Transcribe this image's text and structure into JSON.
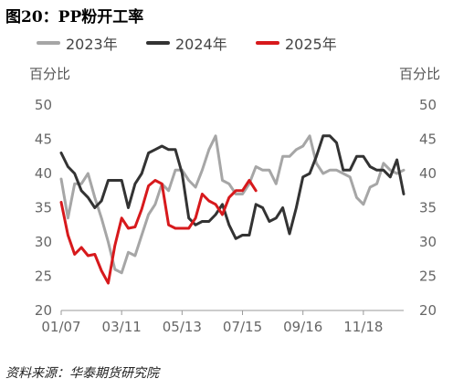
{
  "title": "图20：PP粉开工率",
  "source": "资料来源：华泰期货研究院",
  "chart_data": {
    "type": "line",
    "title": "PP粉开工率",
    "ylabel_left": "百分比",
    "ylabel_right": "百分比",
    "ylim": [
      20,
      50
    ],
    "yticks": [
      20,
      25,
      30,
      35,
      40,
      45,
      50
    ],
    "x_domain_weeks": [
      1,
      52
    ],
    "xtick_labels": [
      "01/07",
      "03/11",
      "05/13",
      "07/15",
      "09/16",
      "11/18"
    ],
    "xtick_weeks": [
      1,
      10,
      19,
      28,
      37,
      46
    ],
    "grid": false,
    "legend_position": "top",
    "series": [
      {
        "name": "2023年",
        "color": "#a6a6a6",
        "x": [
          1,
          2,
          3,
          4,
          5,
          6,
          7,
          8,
          9,
          10,
          11,
          12,
          13,
          14,
          15,
          16,
          17,
          18,
          19,
          20,
          21,
          22,
          23,
          24,
          25,
          26,
          27,
          28,
          29,
          30,
          31,
          32,
          33,
          34,
          35,
          36,
          37,
          38,
          39,
          40,
          41,
          42,
          43,
          44,
          45,
          46,
          47,
          48,
          49,
          50,
          51,
          52
        ],
        "y": [
          39.2,
          33.5,
          38.5,
          38.5,
          40.0,
          36.5,
          33.5,
          30.0,
          26.0,
          25.5,
          28.5,
          28.0,
          31.0,
          34.0,
          35.5,
          38.5,
          37.5,
          40.5,
          40.5,
          39.0,
          38.0,
          40.5,
          43.5,
          45.5,
          39.0,
          38.5,
          37.0,
          37.0,
          38.5,
          41.0,
          40.5,
          40.5,
          38.5,
          42.5,
          42.5,
          43.5,
          44.0,
          45.5,
          41.5,
          40.0,
          40.5,
          40.5,
          40.0,
          39.5,
          36.5,
          35.5,
          38.0,
          38.5,
          41.5,
          40.5,
          40.0,
          40.5
        ]
      },
      {
        "name": "2024年",
        "color": "#333333",
        "x": [
          1,
          2,
          3,
          4,
          5,
          6,
          7,
          8,
          9,
          10,
          11,
          12,
          13,
          14,
          15,
          16,
          17,
          18,
          19,
          20,
          21,
          22,
          23,
          24,
          25,
          26,
          27,
          28,
          29,
          30,
          31,
          32,
          33,
          34,
          35,
          36,
          37,
          38,
          39,
          40,
          41,
          42,
          43,
          44,
          45,
          46,
          47,
          48,
          49,
          50,
          51,
          52
        ],
        "y": [
          43.0,
          41.0,
          40.0,
          37.5,
          36.5,
          35.0,
          36.0,
          39.0,
          39.0,
          39.0,
          35.0,
          38.5,
          40.0,
          43.0,
          43.5,
          44.0,
          43.5,
          43.5,
          40.0,
          33.5,
          32.5,
          33.0,
          33.0,
          34.0,
          35.5,
          32.5,
          30.5,
          31.0,
          31.0,
          35.5,
          35.0,
          33.0,
          33.5,
          35.0,
          31.2,
          35.0,
          39.5,
          40.0,
          42.5,
          45.5,
          45.5,
          44.5,
          40.5,
          40.5,
          42.5,
          42.5,
          41.0,
          40.5,
          40.5,
          39.5,
          42.0,
          37.0
        ]
      },
      {
        "name": "2025年",
        "color": "#d7191c",
        "x": [
          1,
          2,
          3,
          4,
          5,
          6,
          7,
          8,
          9,
          10,
          11,
          12,
          13,
          14,
          15,
          16,
          17,
          18,
          19,
          20,
          21,
          22,
          23,
          24,
          25,
          26,
          27,
          28,
          29,
          30
        ],
        "y": [
          35.8,
          31.0,
          28.2,
          29.2,
          28.0,
          28.2,
          25.8,
          24.0,
          29.5,
          33.5,
          32.0,
          32.2,
          34.8,
          38.2,
          39.0,
          38.5,
          32.5,
          32.0,
          32.0,
          32.0,
          33.5,
          37.0,
          36.0,
          35.5,
          34.0,
          36.5,
          37.5,
          37.5,
          39.0,
          37.5
        ]
      }
    ]
  }
}
